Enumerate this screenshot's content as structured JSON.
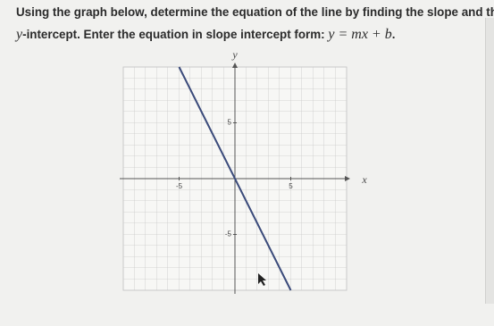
{
  "question": {
    "line1": "Using the graph below, determine the equation of the line by finding the slope and the",
    "var": "y",
    "line2": "-intercept. Enter the equation in slope intercept form:",
    "formula": "y = mx + b",
    "end": "."
  },
  "graph": {
    "x_label": "x",
    "y_label": "y",
    "xlim": [
      -10,
      10
    ],
    "ylim": [
      -10,
      10
    ],
    "xticks": [
      -5,
      5
    ],
    "yticks": [
      5,
      -5
    ],
    "line": {
      "x": [
        -5,
        5
      ],
      "y": [
        10,
        -10
      ]
    }
  }
}
